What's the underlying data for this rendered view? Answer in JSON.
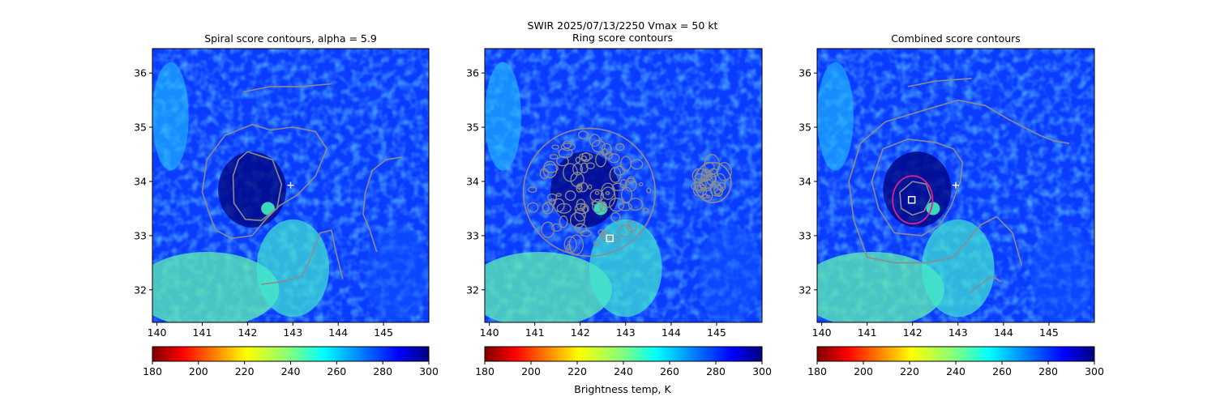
{
  "suptitle": {
    "line1": "SWIR  2025/07/13/2250    Vmax = 50 kt",
    "line2": "Ring score contours"
  },
  "colorbar_label": "Brightness temp, K",
  "chart_data": [
    {
      "type": "heatmap",
      "title": "Spiral score contours, alpha =  5.9",
      "xlim": [
        139.9,
        146.0
      ],
      "ylim": [
        31.4,
        36.45
      ],
      "xticks": [
        140,
        141,
        142,
        143,
        144,
        145
      ],
      "yticks": [
        32,
        33,
        34,
        35,
        36
      ],
      "colorbar": {
        "cmap": "jet_r",
        "range": [
          180,
          300
        ],
        "ticks": [
          180,
          200,
          220,
          240,
          260,
          280,
          300
        ]
      },
      "markers": [
        {
          "type": "plus",
          "x": 142.95,
          "y": 33.93
        }
      ],
      "contours": [
        [
          [
            142.0,
            34.55
          ],
          [
            142.55,
            34.4
          ],
          [
            142.75,
            33.95
          ],
          [
            142.65,
            33.5
          ],
          [
            142.3,
            33.28
          ],
          [
            141.95,
            33.3
          ],
          [
            141.7,
            33.6
          ],
          [
            141.68,
            34.1
          ],
          [
            141.8,
            34.4
          ],
          [
            142.0,
            34.55
          ]
        ],
        [
          [
            141.2,
            33.3
          ],
          [
            141.0,
            33.8
          ],
          [
            141.1,
            34.4
          ],
          [
            141.5,
            34.85
          ],
          [
            142.1,
            35.05
          ],
          [
            142.5,
            34.95
          ],
          [
            143.0,
            35.0
          ],
          [
            143.5,
            34.92
          ],
          [
            143.75,
            34.6
          ],
          [
            143.5,
            34.1
          ],
          [
            143.1,
            33.75
          ],
          [
            142.7,
            33.55
          ],
          [
            142.4,
            33.3
          ],
          [
            142.1,
            33.0
          ],
          [
            141.65,
            32.95
          ],
          [
            141.3,
            33.1
          ],
          [
            141.2,
            33.3
          ]
        ],
        [
          [
            141.9,
            35.65
          ],
          [
            142.5,
            35.75
          ],
          [
            143.2,
            35.75
          ],
          [
            143.85,
            35.8
          ]
        ],
        [
          [
            142.3,
            32.1
          ],
          [
            142.75,
            32.15
          ],
          [
            143.2,
            32.25
          ],
          [
            143.4,
            32.6
          ],
          [
            143.6,
            33.05
          ],
          [
            143.85,
            33.1
          ],
          [
            143.95,
            32.7
          ],
          [
            144.1,
            32.2
          ]
        ],
        [
          [
            145.4,
            34.45
          ],
          [
            145.05,
            34.4
          ],
          [
            144.75,
            34.2
          ],
          [
            144.6,
            33.8
          ],
          [
            144.55,
            33.4
          ],
          [
            144.7,
            33.1
          ],
          [
            144.85,
            32.7
          ]
        ]
      ]
    },
    {
      "type": "heatmap",
      "title": "",
      "xlim": [
        139.9,
        146.0
      ],
      "ylim": [
        31.4,
        36.45
      ],
      "xticks": [
        140,
        141,
        142,
        143,
        144,
        145
      ],
      "yticks": [
        32,
        33,
        34,
        35,
        36
      ],
      "colorbar": {
        "cmap": "jet_r",
        "range": [
          180,
          300
        ],
        "ticks": [
          180,
          200,
          220,
          240,
          260,
          280,
          300
        ]
      },
      "markers": [
        {
          "type": "square",
          "x": 142.65,
          "y": 32.95
        }
      ],
      "contour_regions": [
        {
          "cx": 142.2,
          "cy": 33.8,
          "rx": 1.45,
          "ry": 1.18
        },
        {
          "cx": 144.92,
          "cy": 33.98,
          "rx": 0.4,
          "ry": 0.37
        }
      ]
    },
    {
      "type": "heatmap",
      "title": "Combined score contours",
      "xlim": [
        139.9,
        146.0
      ],
      "ylim": [
        31.4,
        36.45
      ],
      "xticks": [
        140,
        141,
        142,
        143,
        144,
        145
      ],
      "yticks": [
        32,
        33,
        34,
        35,
        36
      ],
      "colorbar": {
        "cmap": "jet_r",
        "range": [
          180,
          300
        ],
        "ticks": [
          180,
          200,
          220,
          240,
          260,
          280,
          300
        ]
      },
      "markers": [
        {
          "type": "plus",
          "x": 142.95,
          "y": 33.93
        },
        {
          "type": "square",
          "x": 141.98,
          "y": 33.66
        }
      ],
      "circles": [
        {
          "cx": 142.0,
          "cy": 33.66,
          "r": 0.44,
          "color": "#e0208f"
        }
      ],
      "contours": [
        [
          [
            142.0,
            34.0
          ],
          [
            142.3,
            33.95
          ],
          [
            142.4,
            33.7
          ],
          [
            142.25,
            33.45
          ],
          [
            142.0,
            33.38
          ],
          [
            141.75,
            33.5
          ],
          [
            141.72,
            33.8
          ],
          [
            142.0,
            34.0
          ]
        ],
        [
          [
            141.2,
            34.25
          ],
          [
            141.35,
            34.6
          ],
          [
            141.9,
            34.78
          ],
          [
            142.5,
            34.72
          ],
          [
            142.9,
            34.6
          ],
          [
            143.1,
            34.35
          ],
          [
            143.05,
            34.0
          ],
          [
            142.85,
            33.55
          ],
          [
            142.6,
            33.2
          ],
          [
            142.2,
            33.0
          ],
          [
            141.6,
            33.05
          ],
          [
            141.25,
            33.5
          ],
          [
            141.1,
            34.0
          ],
          [
            141.2,
            34.25
          ]
        ],
        [
          [
            141.9,
            35.75
          ],
          [
            142.5,
            35.85
          ],
          [
            143.3,
            35.9
          ]
        ],
        [
          [
            144.4,
            32.45
          ],
          [
            144.2,
            33.05
          ],
          [
            143.85,
            33.35
          ],
          [
            143.5,
            33.2
          ],
          [
            143.2,
            32.9
          ],
          [
            142.9,
            32.6
          ],
          [
            142.3,
            32.5
          ],
          [
            141.6,
            32.5
          ],
          [
            141.0,
            32.6
          ],
          [
            140.7,
            33.3
          ],
          [
            140.6,
            34.0
          ],
          [
            140.85,
            34.7
          ],
          [
            141.4,
            35.1
          ],
          [
            142.4,
            35.35
          ],
          [
            143.0,
            35.5
          ],
          [
            143.6,
            35.4
          ],
          [
            144.1,
            35.15
          ],
          [
            144.8,
            34.85
          ],
          [
            145.1,
            34.75
          ],
          [
            145.45,
            34.7
          ]
        ],
        [
          [
            143.25,
            31.95
          ],
          [
            143.5,
            32.1
          ],
          [
            143.75,
            32.25
          ],
          [
            143.95,
            32.15
          ]
        ]
      ]
    }
  ]
}
